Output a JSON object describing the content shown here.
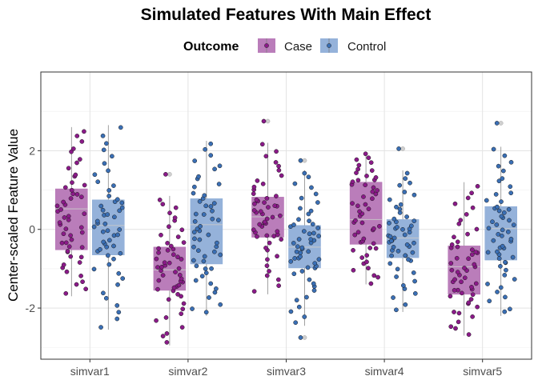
{
  "chart_data": {
    "type": "box",
    "title": "Simulated Features With Main Effect",
    "xlabel": "",
    "ylabel": "Center-scaled Feature Value",
    "ylim": [
      -3.3,
      4.0
    ],
    "yticks": [
      -2,
      0,
      2
    ],
    "categories": [
      "simvar1",
      "simvar2",
      "simvar3",
      "simvar4",
      "simvar5"
    ],
    "legend": {
      "title": "Outcome",
      "position": "top"
    },
    "grid": true,
    "series": [
      {
        "name": "Case",
        "color": "#8b1a89",
        "fill": "#b36fb2",
        "boxes": [
          {
            "q1": -0.52,
            "median": 0.52,
            "q3": 1.03,
            "whisker_low": -1.7,
            "whisker_high": 2.6
          },
          {
            "q1": -1.55,
            "median": -1.03,
            "q3": -0.45,
            "whisker_low": -2.95,
            "whisker_high": 0.85
          },
          {
            "q1": -0.2,
            "median": 0.32,
            "q3": 0.82,
            "whisker_low": -1.65,
            "whisker_high": 2.2
          },
          {
            "q1": -0.38,
            "median": 0.25,
            "q3": 1.2,
            "whisker_low": -1.4,
            "whisker_high": 1.95
          },
          {
            "q1": -1.65,
            "median": -0.95,
            "q3": -0.42,
            "whisker_low": -2.7,
            "whisker_high": 1.2
          }
        ],
        "outliers": [
          [],
          [
            1.4
          ],
          [
            2.75
          ],
          [],
          []
        ]
      },
      {
        "name": "Control",
        "color": "#3a6fb5",
        "fill": "#8aaad6",
        "boxes": [
          {
            "q1": -0.65,
            "median": 0.1,
            "q3": 0.75,
            "whisker_low": -2.55,
            "whisker_high": 2.65
          },
          {
            "q1": -0.88,
            "median": 0.12,
            "q3": 0.78,
            "whisker_low": -2.2,
            "whisker_high": 2.25
          },
          {
            "q1": -0.98,
            "median": -0.45,
            "q3": 0.1,
            "whisker_low": -2.45,
            "whisker_high": 1.5
          },
          {
            "q1": -0.72,
            "median": -0.22,
            "q3": 0.25,
            "whisker_low": -2.1,
            "whisker_high": 1.5
          },
          {
            "q1": -0.78,
            "median": 0.02,
            "q3": 0.58,
            "whisker_low": -2.2,
            "whisker_high": 2.1
          }
        ],
        "outliers": [
          [],
          [],
          [
            1.75,
            -2.75
          ],
          [
            2.05
          ],
          [
            2.7
          ]
        ]
      }
    ]
  }
}
